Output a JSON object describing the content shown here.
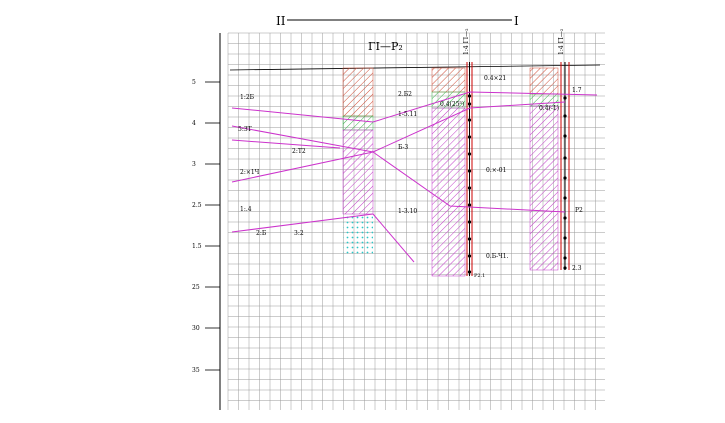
{
  "section": {
    "left_mark": "II",
    "right_mark": "I",
    "profile_title": "ΓΙ—P₂"
  },
  "axis": {
    "tick_labels": [
      "5",
      "4",
      "3",
      "2.5",
      "1.5",
      "25",
      "30",
      "35"
    ]
  },
  "wells": [
    {
      "header": "1:4 ΓΙ—₂",
      "top_label": "0.4×21",
      "side_label": "0.4(25³)",
      "mid_label": "0.×-01",
      "low_label": "0.Б-Ч1.",
      "bottom_label": "Р2.1"
    },
    {
      "header": "1:4 ГI—₂",
      "top_label": "1.7",
      "side_label": "0.4(-1)",
      "right_label": "Р2",
      "bottom_label": "2.3"
    }
  ],
  "layer_labels": {
    "left": [
      "1:2Б",
      "5:3Т",
      "2:×1Ч",
      "1:.4",
      "2:Б"
    ],
    "center": [
      "2.Б2",
      "1-5.11",
      "Б-3",
      "1-3.10"
    ],
    "lower": [
      "2:Т2",
      "3:2"
    ]
  },
  "colors": {
    "grid": "#9a9a9a",
    "axis": "#000000",
    "hatch_red": "#d0503a",
    "hatch_magenta": "#c33fc9",
    "hatch_green": "#39b54a",
    "cyan_dots": "#2bc6c6",
    "layer_line": "#cc33cc",
    "casing": "#cc0000",
    "markers": "#000000"
  }
}
